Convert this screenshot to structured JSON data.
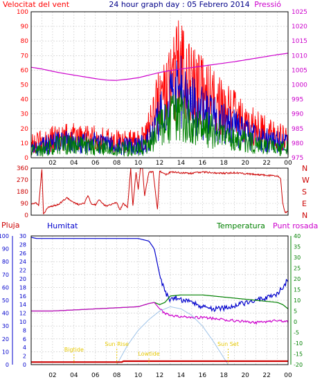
{
  "colors": {
    "wind_red": "#ff0000",
    "wind_blue": "#0000cc",
    "wind_green": "#008000",
    "pressure": "#cc00cc",
    "direction": "#cc0000",
    "rain": "#cc0000",
    "humidity": "#0000cc",
    "temperature": "#008000",
    "dewpoint": "#cc00cc",
    "sun": "#9ec3e8",
    "sun_label": "#e6c800",
    "frame": "#000000"
  },
  "chart_data": [
    {
      "type": "line",
      "title": "24 hour graph day : 05 Febrero 2014",
      "ylabel": "Velocitat del vent",
      "y2label": "Pressió",
      "x_ticks": [
        "02",
        "04",
        "06",
        "08",
        "10",
        "12",
        "14",
        "16",
        "18",
        "20",
        "22",
        "00"
      ],
      "x_range": [
        0,
        24
      ],
      "ylim": [
        0,
        100
      ],
      "y_ticks": [
        0,
        10,
        20,
        30,
        40,
        50,
        60,
        70,
        80,
        90,
        100
      ],
      "y2lim": [
        975,
        1025
      ],
      "y2_ticks": [
        975,
        980,
        985,
        990,
        995,
        1000,
        1005,
        1010,
        1015,
        1020,
        1025
      ],
      "grid": true,
      "series": [
        {
          "color_key": "wind_red",
          "axis": "left",
          "x": [
            0,
            1,
            2,
            3,
            4,
            5,
            6,
            7,
            8,
            9,
            10,
            11,
            12,
            13,
            14,
            15,
            16,
            17,
            18,
            19,
            20,
            21,
            22,
            23,
            24
          ],
          "values": [
            10,
            11,
            13,
            14,
            14,
            13,
            13,
            12,
            11,
            11,
            11,
            20,
            42,
            58,
            60,
            48,
            44,
            40,
            34,
            30,
            24,
            20,
            17,
            15,
            12
          ]
        },
        {
          "color_key": "wind_blue",
          "axis": "left",
          "x": [
            0,
            1,
            2,
            3,
            4,
            5,
            6,
            7,
            8,
            9,
            10,
            11,
            12,
            13,
            14,
            15,
            16,
            17,
            18,
            19,
            20,
            21,
            22,
            23,
            24
          ],
          "values": [
            6,
            8,
            10,
            11,
            11,
            10,
            10,
            9,
            8,
            8,
            8,
            12,
            26,
            40,
            44,
            35,
            30,
            27,
            23,
            20,
            16,
            14,
            12,
            11,
            9
          ]
        },
        {
          "color_key": "wind_green",
          "axis": "left",
          "x": [
            0,
            1,
            2,
            3,
            4,
            5,
            6,
            7,
            8,
            9,
            10,
            11,
            12,
            13,
            14,
            15,
            16,
            17,
            18,
            19,
            20,
            21,
            22,
            23,
            24
          ],
          "values": [
            4,
            6,
            8,
            9,
            9,
            8,
            8,
            7,
            6,
            6,
            6,
            8,
            20,
            26,
            29,
            23,
            20,
            18,
            15,
            13,
            11,
            9,
            8,
            7,
            6
          ]
        },
        {
          "color_key": "pressure",
          "axis": "right",
          "x": [
            0,
            1,
            2,
            3,
            4,
            5,
            6,
            7,
            8,
            9,
            10,
            11,
            12,
            13,
            14,
            15,
            16,
            17,
            18,
            19,
            20,
            21,
            22,
            23,
            24
          ],
          "values": [
            1006,
            1005.4,
            1004.6,
            1003.9,
            1003.3,
            1002.7,
            1002.1,
            1001.6,
            1001.5,
            1001.9,
            1002.4,
            1003.3,
            1004.2,
            1004.9,
            1005.4,
            1005.9,
            1006.4,
            1006.9,
            1007.4,
            1007.9,
            1008.5,
            1009.1,
            1009.7,
            1010.3,
            1010.8
          ]
        }
      ]
    },
    {
      "type": "line",
      "ylabel_ticks": [
        "360",
        "270",
        "180",
        "90",
        "0"
      ],
      "y2label_ticks": [
        "N",
        "W",
        "S",
        "E",
        "N"
      ],
      "ylim": [
        0,
        360
      ],
      "x_range": [
        0,
        24
      ],
      "grid": true,
      "series": [
        {
          "color_key": "direction",
          "x": [
            0,
            0.4,
            0.7,
            1.0,
            1.15,
            1.25,
            1.4,
            1.6,
            2,
            2.5,
            3,
            3.3,
            3.6,
            4,
            4.5,
            5,
            5.3,
            5.6,
            6,
            6.4,
            6.7,
            7,
            7.5,
            8,
            8.3,
            8.6,
            9,
            9.3,
            9.5,
            9.8,
            10,
            10.2,
            10.4,
            10.6,
            11,
            11.4,
            11.8,
            12,
            12.3,
            12.6,
            13,
            14,
            15,
            16,
            17,
            18,
            19,
            20,
            21,
            22,
            23,
            23.3,
            23.5,
            23.7,
            24
          ],
          "values": [
            85,
            95,
            75,
            355,
            10,
            20,
            40,
            60,
            70,
            80,
            110,
            135,
            120,
            95,
            80,
            95,
            150,
            90,
            80,
            120,
            85,
            70,
            85,
            95,
            40,
            90,
            60,
            355,
            70,
            330,
            200,
            355,
            360,
            150,
            330,
            330,
            40,
            340,
            320,
            310,
            330,
            325,
            320,
            330,
            325,
            320,
            325,
            318,
            310,
            305,
            300,
            280,
            90,
            20,
            30
          ]
        }
      ]
    },
    {
      "type": "line",
      "legend": [
        "Pluja",
        "Humitat",
        "Temperatura",
        "Punt rosada"
      ],
      "x_range": [
        0,
        24
      ],
      "ylim_rain": [
        0,
        30
      ],
      "y_rain_ticks": [
        0,
        2,
        4,
        6,
        8,
        10,
        12,
        14,
        16,
        18,
        20,
        22,
        24,
        26,
        28,
        30
      ],
      "ylim_hum": [
        0,
        100
      ],
      "y_hum_ticks": [
        0,
        10,
        20,
        30,
        40,
        50,
        60,
        70,
        80,
        90,
        100
      ],
      "ylim_temp": [
        -20,
        40
      ],
      "y_temp_ticks": [
        -20,
        -15,
        -10,
        -5,
        0,
        5,
        10,
        15,
        20,
        25,
        30,
        35,
        40
      ],
      "grid": true,
      "annotations": [
        {
          "label": "Sun Rise",
          "x": 8.0
        },
        {
          "label": "Lowtide",
          "x": 11.0
        },
        {
          "label": "Sun Set",
          "x": 18.4
        },
        {
          "label": "Bigtide",
          "x": 4.0
        }
      ],
      "series": [
        {
          "color_key": "humidity",
          "axis": "hum",
          "x": [
            0,
            0.5,
            1,
            2,
            4,
            6,
            8,
            10,
            11,
            11.5,
            12,
            12.5,
            13,
            13.5,
            14,
            15,
            16,
            17,
            18,
            19,
            20,
            21,
            22,
            23,
            23.5,
            24
          ],
          "values": [
            99,
            98,
            98,
            98,
            98,
            98,
            98,
            98,
            96,
            90,
            70,
            56,
            50,
            52,
            50,
            49,
            45,
            43,
            44,
            46,
            48,
            50,
            52,
            55,
            60,
            66
          ]
        },
        {
          "color_key": "temperature",
          "axis": "temp",
          "x": [
            0,
            2,
            4,
            6,
            8,
            10,
            11,
            11.5,
            12,
            12.5,
            13,
            14,
            15,
            16,
            17,
            18,
            19,
            20,
            21,
            22,
            23,
            23.5,
            24
          ],
          "values": [
            5,
            5,
            5.5,
            6,
            6.5,
            7,
            8.5,
            9,
            8,
            9,
            12,
            12.5,
            12.5,
            12.5,
            12,
            11.5,
            11,
            10.5,
            10,
            9.5,
            9,
            8,
            6
          ]
        },
        {
          "color_key": "dewpoint",
          "axis": "temp",
          "x": [
            0,
            2,
            4,
            6,
            8,
            10,
            11,
            11.5,
            12,
            12.5,
            13,
            14,
            15,
            16,
            17,
            18,
            19,
            20,
            21,
            22,
            23,
            24
          ],
          "values": [
            5,
            5,
            5.5,
            6,
            6.5,
            7,
            8.5,
            9,
            6,
            4,
            3,
            2.5,
            2,
            2,
            1.5,
            1,
            0.5,
            0,
            -0.5,
            0,
            0.5,
            0
          ]
        },
        {
          "color_key": "sun",
          "axis": "temp",
          "x": [
            8.0,
            9,
            10,
            11,
            12,
            13,
            14,
            15,
            16,
            17,
            18.4
          ],
          "values": [
            -20,
            -11,
            -4,
            1,
            5,
            7,
            6,
            3,
            -2,
            -9,
            -20
          ]
        },
        {
          "color_key": "rain",
          "axis": "rain",
          "x": [
            0,
            8.5,
            8.6,
            24
          ],
          "values": [
            0.6,
            0.6,
            0.8,
            0.8
          ]
        }
      ]
    }
  ]
}
